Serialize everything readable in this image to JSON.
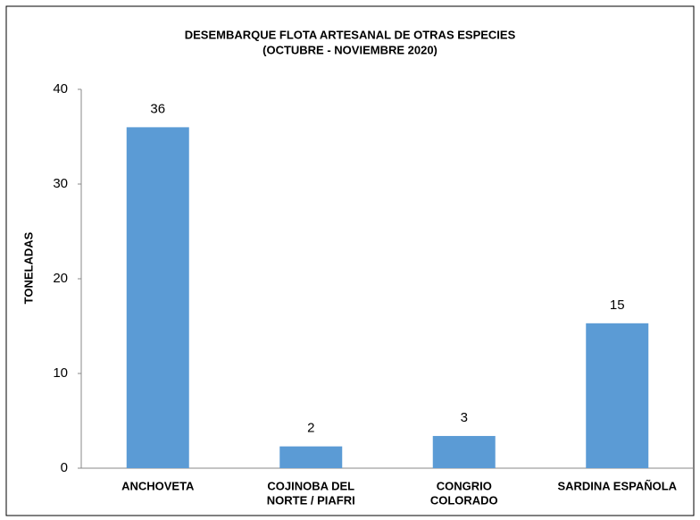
{
  "chart_data": {
    "type": "bar",
    "title": "DESEMBARQUE FLOTA ARTESANAL  DE OTRAS ESPECIES",
    "subtitle": "(OCTUBRE  - NOVIEMBRE 2020)",
    "y_label": "TONELADAS",
    "categories": [
      [
        "ANCHOVETA"
      ],
      [
        "COJINOBA DEL",
        "NORTE / PIAFRI"
      ],
      [
        "CONGRIO",
        "COLORADO"
      ],
      [
        "SARDINA ESPAÑOLA"
      ]
    ],
    "values": [
      36,
      2.3,
      3.4,
      15.3
    ],
    "value_labels": [
      "36",
      "2",
      "3",
      "15"
    ],
    "color": "#5b9bd5",
    "ylim": [
      0,
      40
    ],
    "yticks": [
      0,
      10,
      20,
      30,
      40
    ],
    "grid": false
  }
}
